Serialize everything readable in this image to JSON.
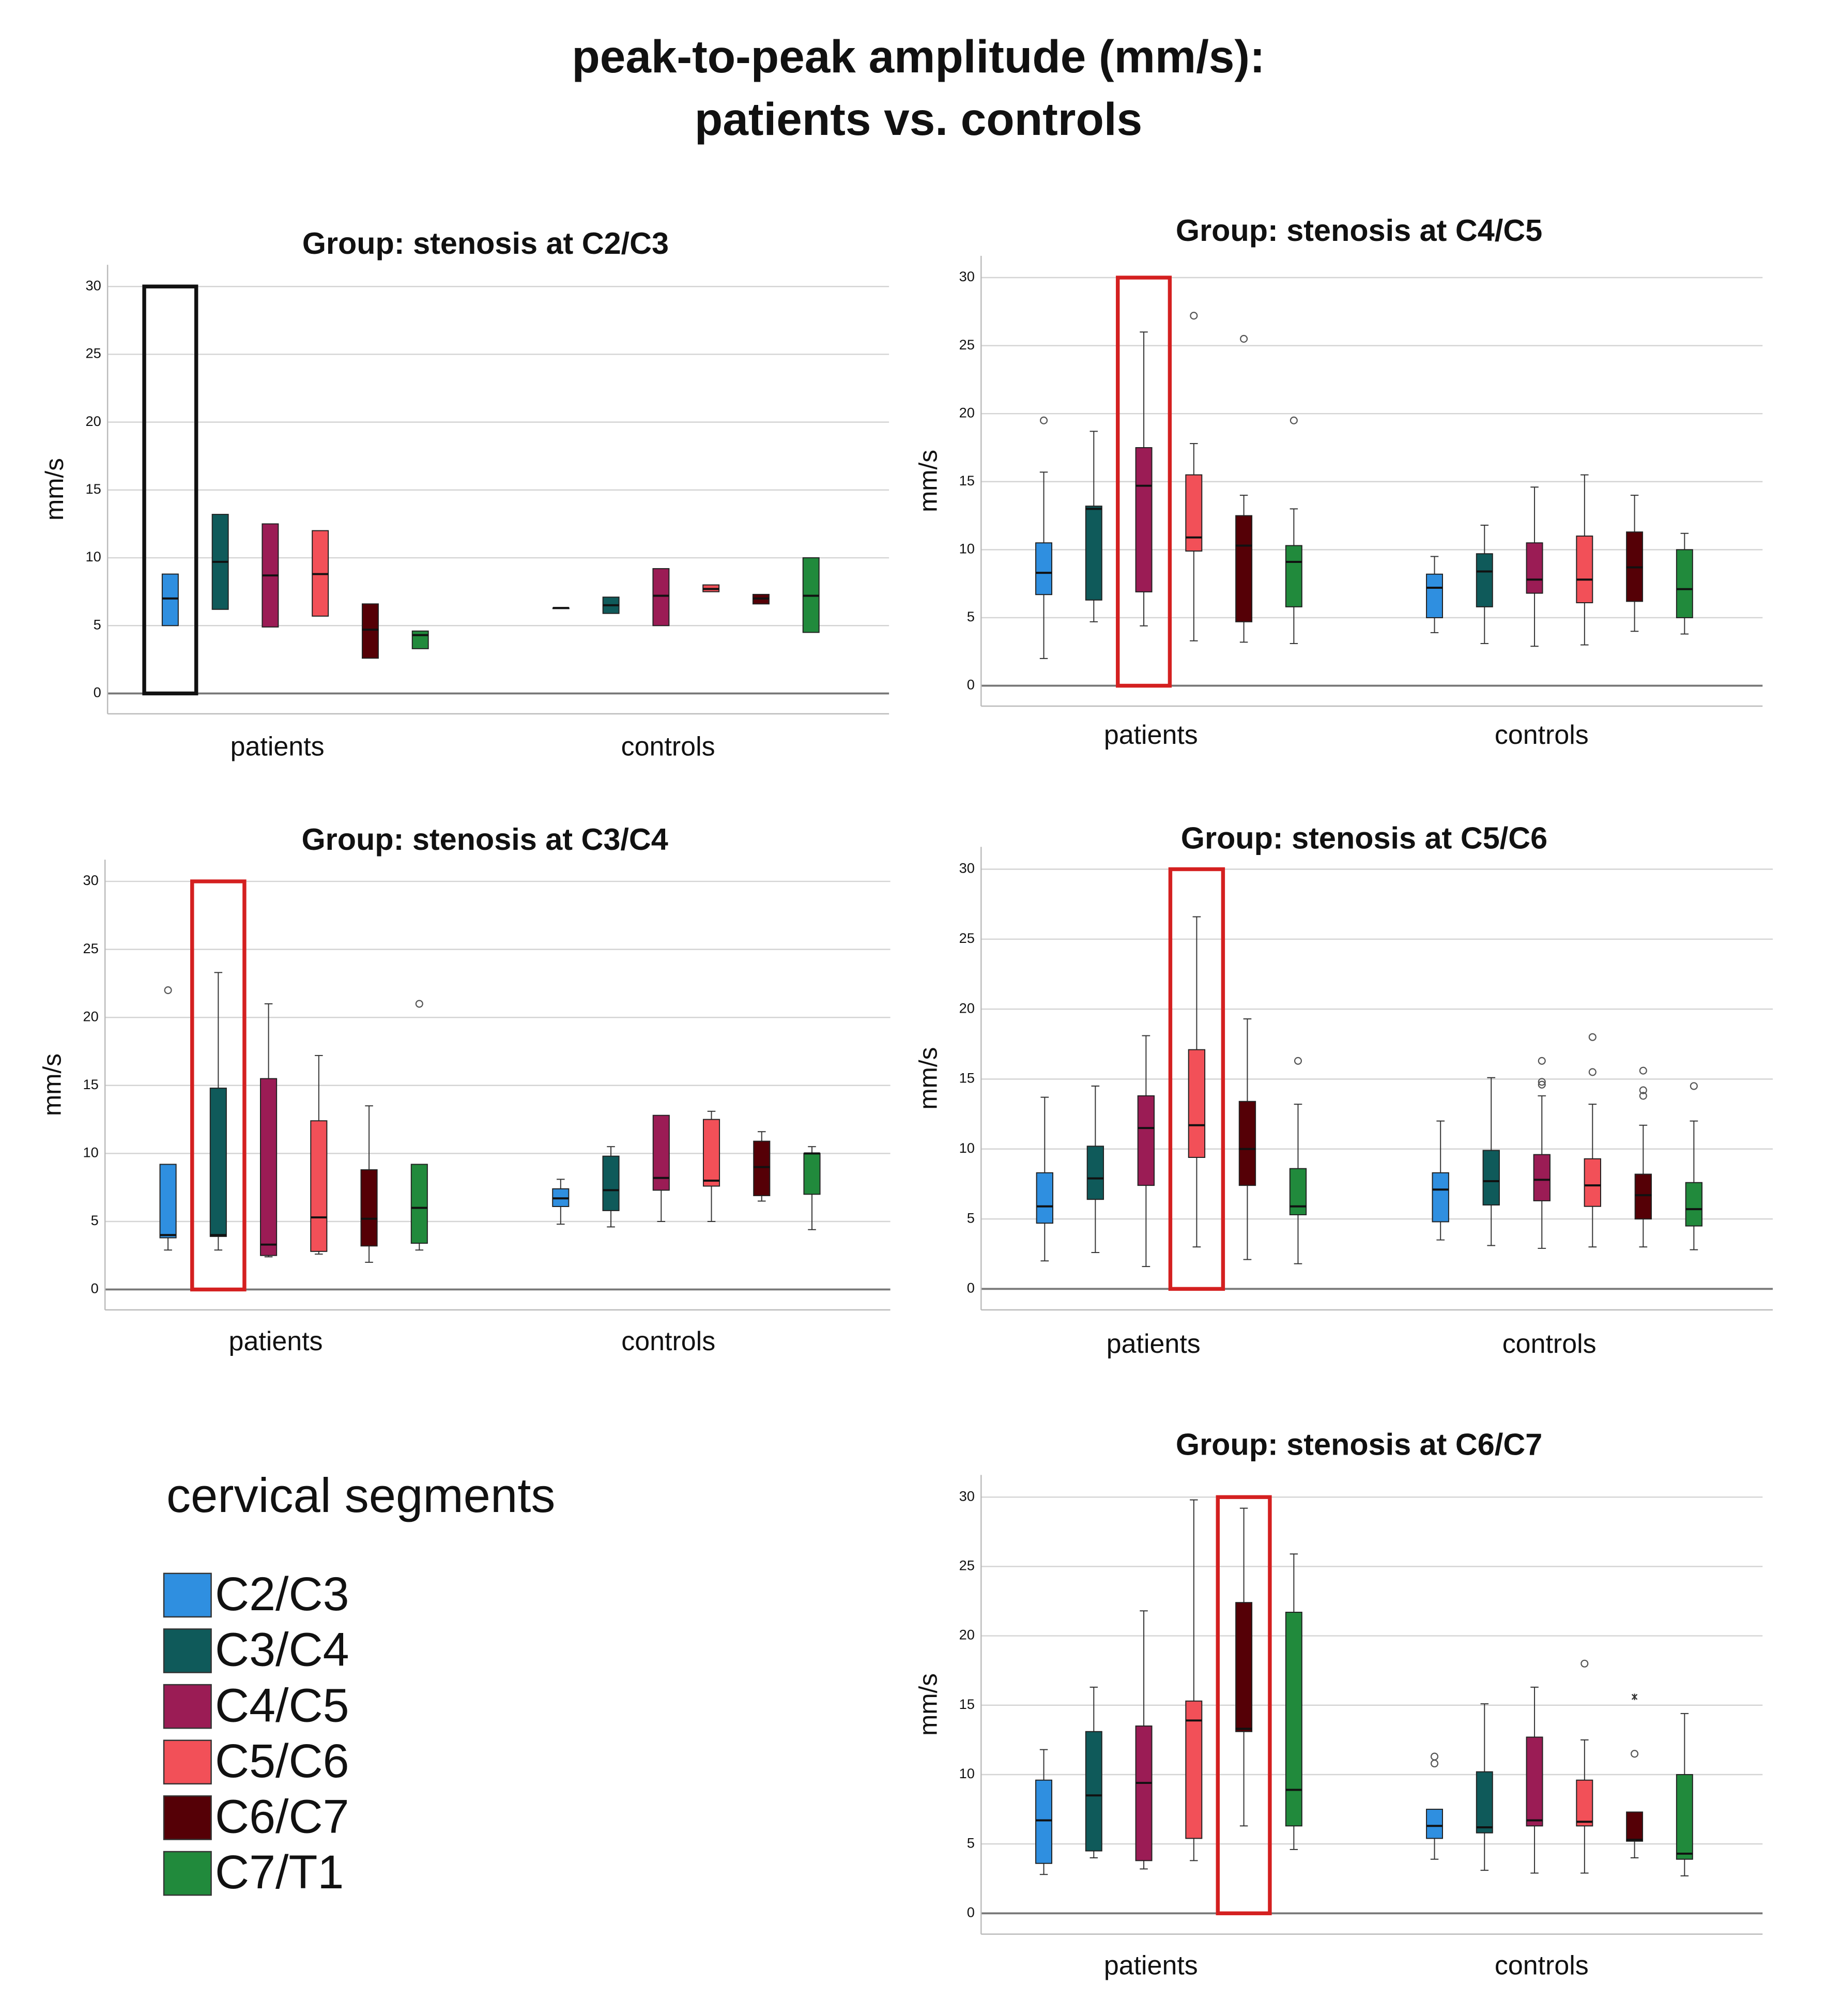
{
  "title_lines": [
    "peak-to-peak amplitude (mm/s):",
    "patients vs. controls"
  ],
  "legend": {
    "title": "cervical segments",
    "series": [
      {
        "name": "C2/C3",
        "color": "#2f8fe0"
      },
      {
        "name": "C3/C4",
        "color": "#0f5a5a"
      },
      {
        "name": "C4/C5",
        "color": "#9b1c55"
      },
      {
        "name": "C5/C6",
        "color": "#f25058"
      },
      {
        "name": "C6/C7",
        "color": "#550006"
      },
      {
        "name": "C7/T1",
        "color": "#218a3c"
      }
    ]
  },
  "chart_data": [
    {
      "type": "box",
      "title": "Group: stenosis at C2/C3",
      "ylabel": "mm/s",
      "categories": [
        "patients",
        "controls"
      ],
      "ylim": [
        -1.5,
        31.6
      ],
      "yticks": [
        0,
        5,
        10,
        15,
        20,
        25,
        30
      ],
      "grid": true,
      "highlight": {
        "series": 0,
        "color": "#111111"
      },
      "series": [
        {
          "values": [
            {
              "min": 5,
              "q1": 5,
              "median": 7,
              "q3": 8.8,
              "max": 8.8
            },
            {
              "min": 6.3,
              "q1": 6.3,
              "median": 6.3,
              "q3": 6.3,
              "max": 6.3
            }
          ]
        },
        {
          "values": [
            {
              "min": 6.2,
              "q1": 6.2,
              "median": 9.7,
              "q3": 13.2,
              "max": 13.2
            },
            {
              "min": 5.9,
              "q1": 5.9,
              "median": 6.5,
              "q3": 7.1,
              "max": 7.1
            }
          ]
        },
        {
          "values": [
            {
              "min": 4.9,
              "q1": 4.9,
              "median": 8.7,
              "q3": 12.5,
              "max": 12.5
            },
            {
              "min": 5,
              "q1": 5,
              "median": 7.2,
              "q3": 9.2,
              "max": 9.2
            }
          ]
        },
        {
          "values": [
            {
              "min": 5.7,
              "q1": 5.7,
              "median": 8.8,
              "q3": 12,
              "max": 12
            },
            {
              "min": 7.5,
              "q1": 7.5,
              "median": 7.7,
              "q3": 8,
              "max": 8
            }
          ]
        },
        {
          "values": [
            {
              "min": 2.6,
              "q1": 2.6,
              "median": 4.7,
              "q3": 6.6,
              "max": 6.6
            },
            {
              "min": 6.6,
              "q1": 6.6,
              "median": 7,
              "q3": 7.3,
              "max": 7.3
            }
          ]
        },
        {
          "values": [
            {
              "min": 3.3,
              "q1": 3.3,
              "median": 4.3,
              "q3": 4.6,
              "max": 4.6
            },
            {
              "min": 4.5,
              "q1": 4.5,
              "median": 7.2,
              "q3": 10,
              "max": 10
            }
          ]
        }
      ]
    },
    {
      "type": "box",
      "title": "Group: stenosis at C4/C5",
      "ylabel": "mm/s",
      "categories": [
        "patients",
        "controls"
      ],
      "ylim": [
        -1.5,
        31.6
      ],
      "yticks": [
        0,
        5,
        10,
        15,
        20,
        25,
        30
      ],
      "grid": true,
      "highlight": {
        "series": 2,
        "color": "#d42020"
      },
      "series": [
        {
          "values": [
            {
              "min": 2,
              "q1": 6.7,
              "median": 8.3,
              "q3": 10.5,
              "max": 15.7,
              "outliers": [
                19.5
              ]
            },
            {
              "min": 3.9,
              "q1": 5,
              "median": 7.2,
              "q3": 8.2,
              "max": 9.5
            }
          ]
        },
        {
          "values": [
            {
              "min": 4.7,
              "q1": 6.3,
              "median": 13,
              "q3": 13.2,
              "max": 18.7
            },
            {
              "min": 3.1,
              "q1": 5.8,
              "median": 8.4,
              "q3": 9.7,
              "max": 11.8
            }
          ]
        },
        {
          "values": [
            {
              "min": 4.4,
              "q1": 6.9,
              "median": 14.7,
              "q3": 17.5,
              "max": 26
            },
            {
              "min": 2.9,
              "q1": 6.8,
              "median": 7.8,
              "q3": 10.5,
              "max": 14.6
            }
          ]
        },
        {
          "values": [
            {
              "min": 3.3,
              "q1": 9.9,
              "median": 10.9,
              "q3": 15.5,
              "max": 17.8,
              "outliers": [
                27.2
              ]
            },
            {
              "min": 3,
              "q1": 6.1,
              "median": 7.8,
              "q3": 11,
              "max": 15.5
            }
          ]
        },
        {
          "values": [
            {
              "min": 3.2,
              "q1": 4.7,
              "median": 10.3,
              "q3": 12.5,
              "max": 14,
              "outliers": [
                25.5
              ]
            },
            {
              "min": 4,
              "q1": 6.2,
              "median": 8.7,
              "q3": 11.3,
              "max": 14
            }
          ]
        },
        {
          "values": [
            {
              "min": 3.1,
              "q1": 5.8,
              "median": 9.1,
              "q3": 10.3,
              "max": 13,
              "outliers": [
                19.5
              ]
            },
            {
              "min": 3.8,
              "q1": 5,
              "median": 7.1,
              "q3": 10,
              "max": 11.2
            }
          ]
        }
      ]
    },
    {
      "type": "box",
      "title": "Group: stenosis at C3/C4",
      "ylabel": "mm/s",
      "categories": [
        "patients",
        "controls"
      ],
      "ylim": [
        -1.5,
        31.6
      ],
      "yticks": [
        0,
        5,
        10,
        15,
        20,
        25,
        30
      ],
      "grid": true,
      "highlight": {
        "series": 1,
        "color": "#d42020"
      },
      "series": [
        {
          "values": [
            {
              "min": 2.9,
              "q1": 3.8,
              "median": 4,
              "q3": 9.2,
              "max": 9.2,
              "outliers": [
                22
              ]
            },
            {
              "min": 4.8,
              "q1": 6.1,
              "median": 6.7,
              "q3": 7.4,
              "max": 8.1
            }
          ]
        },
        {
          "values": [
            {
              "min": 2.9,
              "q1": 3.9,
              "median": 4,
              "q3": 14.8,
              "max": 23.3
            },
            {
              "min": 4.6,
              "q1": 5.8,
              "median": 7.3,
              "q3": 9.8,
              "max": 10.5
            }
          ]
        },
        {
          "values": [
            {
              "min": 2.4,
              "q1": 2.5,
              "median": 3.3,
              "q3": 15.5,
              "max": 21
            },
            {
              "min": 5,
              "q1": 7.3,
              "median": 8.2,
              "q3": 12.8,
              "max": 12.8
            }
          ]
        },
        {
          "values": [
            {
              "min": 2.6,
              "q1": 2.8,
              "median": 5.3,
              "q3": 12.4,
              "max": 17.2
            },
            {
              "min": 5,
              "q1": 7.6,
              "median": 8,
              "q3": 12.5,
              "max": 13.1
            }
          ]
        },
        {
          "values": [
            {
              "min": 2,
              "q1": 3.2,
              "median": 5.2,
              "q3": 8.8,
              "max": 13.5
            },
            {
              "min": 6.5,
              "q1": 6.9,
              "median": 9,
              "q3": 10.9,
              "max": 11.6
            }
          ]
        },
        {
          "values": [
            {
              "min": 2.9,
              "q1": 3.4,
              "median": 6,
              "q3": 9.2,
              "max": 9.2,
              "outliers": [
                21
              ]
            },
            {
              "min": 4.4,
              "q1": 7,
              "median": 10,
              "q3": 10,
              "max": 10.5
            }
          ]
        }
      ]
    },
    {
      "type": "box",
      "title": "Group: stenosis at C5/C6",
      "ylabel": "mm/s",
      "categories": [
        "patients",
        "controls"
      ],
      "ylim": [
        -1.5,
        31.6
      ],
      "yticks": [
        0,
        5,
        10,
        15,
        20,
        25,
        30
      ],
      "grid": true,
      "highlight": {
        "series": 3,
        "color": "#d42020"
      },
      "series": [
        {
          "values": [
            {
              "min": 2,
              "q1": 4.7,
              "median": 5.9,
              "q3": 8.3,
              "max": 13.7
            },
            {
              "min": 3.5,
              "q1": 4.8,
              "median": 7.1,
              "q3": 8.3,
              "max": 12
            }
          ]
        },
        {
          "values": [
            {
              "min": 2.6,
              "q1": 6.4,
              "median": 7.9,
              "q3": 10.2,
              "max": 14.5
            },
            {
              "min": 3.1,
              "q1": 6,
              "median": 7.7,
              "q3": 9.9,
              "max": 15.1
            }
          ]
        },
        {
          "values": [
            {
              "min": 1.6,
              "q1": 7.4,
              "median": 11.5,
              "q3": 13.8,
              "max": 18.1
            },
            {
              "min": 2.9,
              "q1": 6.3,
              "median": 7.8,
              "q3": 9.6,
              "max": 13.8,
              "outliers": [
                14.6,
                14.8,
                16.3
              ]
            }
          ]
        },
        {
          "values": [
            {
              "min": 3,
              "q1": 9.4,
              "median": 11.7,
              "q3": 17.1,
              "max": 26.6
            },
            {
              "min": 3,
              "q1": 5.9,
              "median": 7.4,
              "q3": 9.3,
              "max": 13.2,
              "outliers": [
                15.5,
                18
              ]
            }
          ]
        },
        {
          "values": [
            {
              "min": 2.1,
              "q1": 7.4,
              "median": 10,
              "q3": 13.4,
              "max": 19.3
            },
            {
              "min": 3,
              "q1": 5,
              "median": 6.7,
              "q3": 8.2,
              "max": 11.7,
              "outliers": [
                13.8,
                14.2,
                15.6
              ]
            }
          ]
        },
        {
          "values": [
            {
              "min": 1.8,
              "q1": 5.3,
              "median": 5.9,
              "q3": 8.6,
              "max": 13.2,
              "outliers": [
                16.3
              ]
            },
            {
              "min": 2.8,
              "q1": 4.5,
              "median": 5.7,
              "q3": 7.6,
              "max": 12,
              "outliers": [
                14.5
              ]
            }
          ]
        }
      ]
    },
    {
      "type": "box",
      "title": "Group: stenosis at C6/C7",
      "ylabel": "mm/s",
      "categories": [
        "patients",
        "controls"
      ],
      "ylim": [
        -1.5,
        31.6
      ],
      "yticks": [
        0,
        5,
        10,
        15,
        20,
        25,
        30
      ],
      "grid": true,
      "highlight": {
        "series": 4,
        "color": "#d42020"
      },
      "series": [
        {
          "values": [
            {
              "min": 2.8,
              "q1": 3.6,
              "median": 6.7,
              "q3": 9.6,
              "max": 11.8
            },
            {
              "min": 3.9,
              "q1": 5.4,
              "median": 6.3,
              "q3": 7.5,
              "max": 7.5,
              "outliers": [
                10.8,
                11.3
              ]
            }
          ]
        },
        {
          "values": [
            {
              "min": 4,
              "q1": 4.5,
              "median": 8.5,
              "q3": 13.1,
              "max": 16.3
            },
            {
              "min": 3.1,
              "q1": 5.8,
              "median": 6.2,
              "q3": 10.2,
              "max": 15.1
            }
          ]
        },
        {
          "values": [
            {
              "min": 3.2,
              "q1": 3.8,
              "median": 9.4,
              "q3": 13.5,
              "max": 21.8
            },
            {
              "min": 2.9,
              "q1": 6.3,
              "median": 6.7,
              "q3": 12.7,
              "max": 16.3
            }
          ]
        },
        {
          "values": [
            {
              "min": 3.8,
              "q1": 5.4,
              "median": 13.9,
              "q3": 15.3,
              "max": 29.8
            },
            {
              "min": 2.9,
              "q1": 6.3,
              "median": 6.6,
              "q3": 9.6,
              "max": 12.5,
              "outliers": [
                18
              ]
            }
          ]
        },
        {
          "values": [
            {
              "min": 6.3,
              "q1": 13.1,
              "median": 13.3,
              "q3": 22.4,
              "max": 29.2
            },
            {
              "min": 4,
              "q1": 5.2,
              "median": 5.3,
              "q3": 7.3,
              "max": 7.3,
              "outliers": [
                11.5
              ],
              "extremes": [
                15.6
              ]
            }
          ]
        },
        {
          "values": [
            {
              "min": 4.6,
              "q1": 6.3,
              "median": 8.9,
              "q3": 21.7,
              "max": 25.9
            },
            {
              "min": 2.7,
              "q1": 3.9,
              "median": 4.3,
              "q3": 10,
              "max": 14.4
            }
          ]
        }
      ]
    }
  ]
}
